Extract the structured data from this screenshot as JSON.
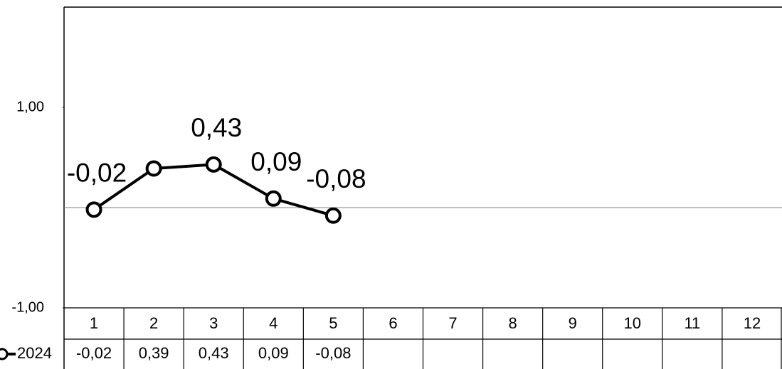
{
  "chart_data": {
    "type": "line",
    "categories": [
      "1",
      "2",
      "3",
      "4",
      "5",
      "6",
      "7",
      "8",
      "9",
      "10",
      "11",
      "12"
    ],
    "series": [
      {
        "name": "2024",
        "color": "#000000",
        "values": [
          -0.02,
          0.39,
          0.43,
          0.09,
          -0.08,
          null,
          null,
          null,
          null,
          null,
          null,
          null
        ],
        "value_labels": [
          "-0,02",
          null,
          "0,43",
          "0,09",
          "-0,08",
          null,
          null,
          null,
          null,
          null,
          null,
          null
        ],
        "table_labels": [
          "-0,02",
          "0,39",
          "0,43",
          "0,09",
          "-0,08",
          null,
          null,
          null,
          null,
          null,
          null,
          null
        ]
      }
    ],
    "ylim": [
      -1,
      2
    ],
    "yticks": [
      {
        "value": -1,
        "label": "-1,00"
      },
      {
        "value": 1,
        "label": "1,00"
      }
    ],
    "x_axis_at": 0,
    "data_table": true
  }
}
